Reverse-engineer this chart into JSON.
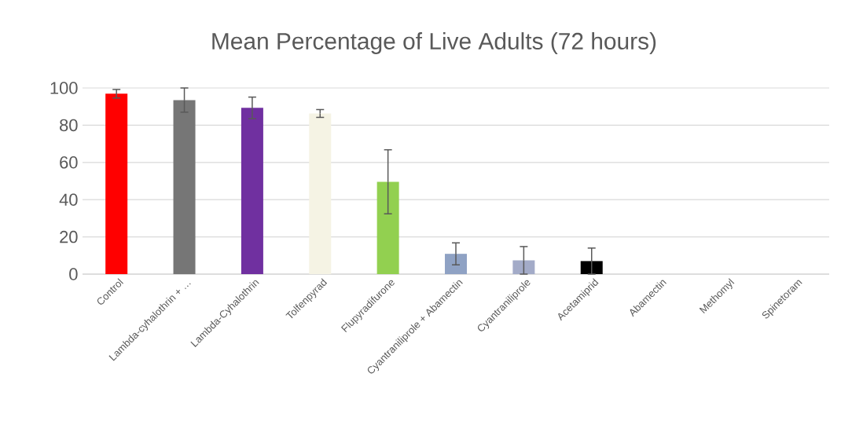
{
  "chart_data": {
    "type": "bar",
    "title": "Mean Percentage of Live Adults (72 hours)",
    "categories": [
      "Control",
      "Lambda-cyhalothrin + …",
      "Lambda-Cyhalothrin",
      "Tolfenpyrad",
      "Flupyradifurone",
      "Cyantraniliprole + Abamectin",
      "Cyantraniliprole",
      "Acetamiprid",
      "Abamectin",
      "Methomyl",
      "Spinetoram"
    ],
    "values": [
      96.9,
      93.5,
      89.3,
      86.3,
      49.6,
      10.9,
      7.4,
      7.0,
      0,
      0,
      0
    ],
    "errors": [
      2.3,
      6.5,
      5.8,
      2.1,
      17.2,
      5.9,
      7.4,
      7.0,
      null,
      null,
      null
    ],
    "colors": [
      "#ff0000",
      "#767676",
      "#7030a0",
      "#f5f3e4",
      "#92d050",
      "#8fa2c4",
      "#a3abc8",
      "#000000",
      "#8fa2c4",
      "#8fa2c4",
      "#8fa2c4"
    ],
    "ylim": [
      0,
      100
    ],
    "yticks": [
      0,
      20,
      40,
      60,
      80,
      100
    ],
    "grid": "y"
  }
}
